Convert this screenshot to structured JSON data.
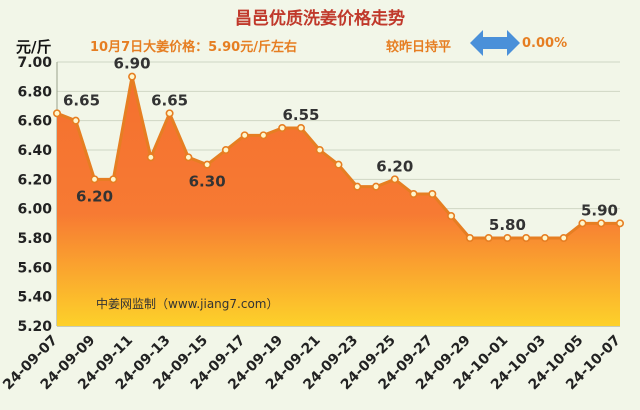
{
  "header": {
    "title": "昌邑优质洗姜价格走势",
    "unit": "元/斤",
    "price_note": "10月7日大姜价格：5.90元/斤左右",
    "compare_label": "较昨日持平",
    "compare_value": "0.00%"
  },
  "watermark": "中姜网监制（www.jiang7.com）",
  "colors": {
    "line": "#e67e22",
    "area_top": "#f4702f",
    "area_bottom": "#fdd12a",
    "arrow": "#4a90d9",
    "background": "#f2f6e8"
  },
  "icons": [
    "double-arrow-icon"
  ],
  "chart_data": {
    "type": "area",
    "title": "昌邑优质洗姜价格走势",
    "ylabel": "元/斤",
    "ylim": [
      5.2,
      7.0
    ],
    "y_ticks": [
      "7.00",
      "6.80",
      "6.60",
      "6.40",
      "6.20",
      "6.00",
      "5.80",
      "5.60",
      "5.40",
      "5.20"
    ],
    "grid": true,
    "x_tick_labels": [
      "24-09-07",
      "24-09-09",
      "24-09-11",
      "24-09-13",
      "24-09-15",
      "24-09-17",
      "24-09-19",
      "24-09-21",
      "24-09-23",
      "24-09-25",
      "24-09-27",
      "24-09-29",
      "24-10-01",
      "24-10-03",
      "24-10-05",
      "24-10-07"
    ],
    "x": [
      "24-09-07",
      "24-09-08",
      "24-09-09",
      "24-09-10",
      "24-09-11",
      "24-09-12",
      "24-09-13",
      "24-09-14",
      "24-09-15",
      "24-09-16",
      "24-09-17",
      "24-09-18",
      "24-09-19",
      "24-09-20",
      "24-09-21",
      "24-09-22",
      "24-09-23",
      "24-09-24",
      "24-09-25",
      "24-09-26",
      "24-09-27",
      "24-09-28",
      "24-09-29",
      "24-09-30",
      "24-10-01",
      "24-10-02",
      "24-10-03",
      "24-10-04",
      "24-10-05",
      "24-10-06",
      "24-10-07"
    ],
    "series": [
      {
        "values": [
          6.65,
          6.6,
          6.2,
          6.2,
          6.9,
          6.35,
          6.65,
          6.35,
          6.3,
          6.4,
          6.5,
          6.5,
          6.55,
          6.55,
          6.4,
          6.3,
          6.15,
          6.15,
          6.2,
          6.1,
          6.1,
          5.95,
          5.8,
          5.8,
          5.8,
          5.8,
          5.8,
          5.8,
          5.9,
          5.9,
          5.9
        ]
      }
    ],
    "data_labels": [
      {
        "index": 0,
        "text": "6.65"
      },
      {
        "index": 2,
        "text": "6.20"
      },
      {
        "index": 4,
        "text": "6.90"
      },
      {
        "index": 6,
        "text": "6.65"
      },
      {
        "index": 8,
        "text": "6.30"
      },
      {
        "index": 13,
        "text": "6.55"
      },
      {
        "index": 18,
        "text": "6.20"
      },
      {
        "index": 24,
        "text": "5.80"
      },
      {
        "index": 30,
        "text": "5.90"
      }
    ]
  }
}
